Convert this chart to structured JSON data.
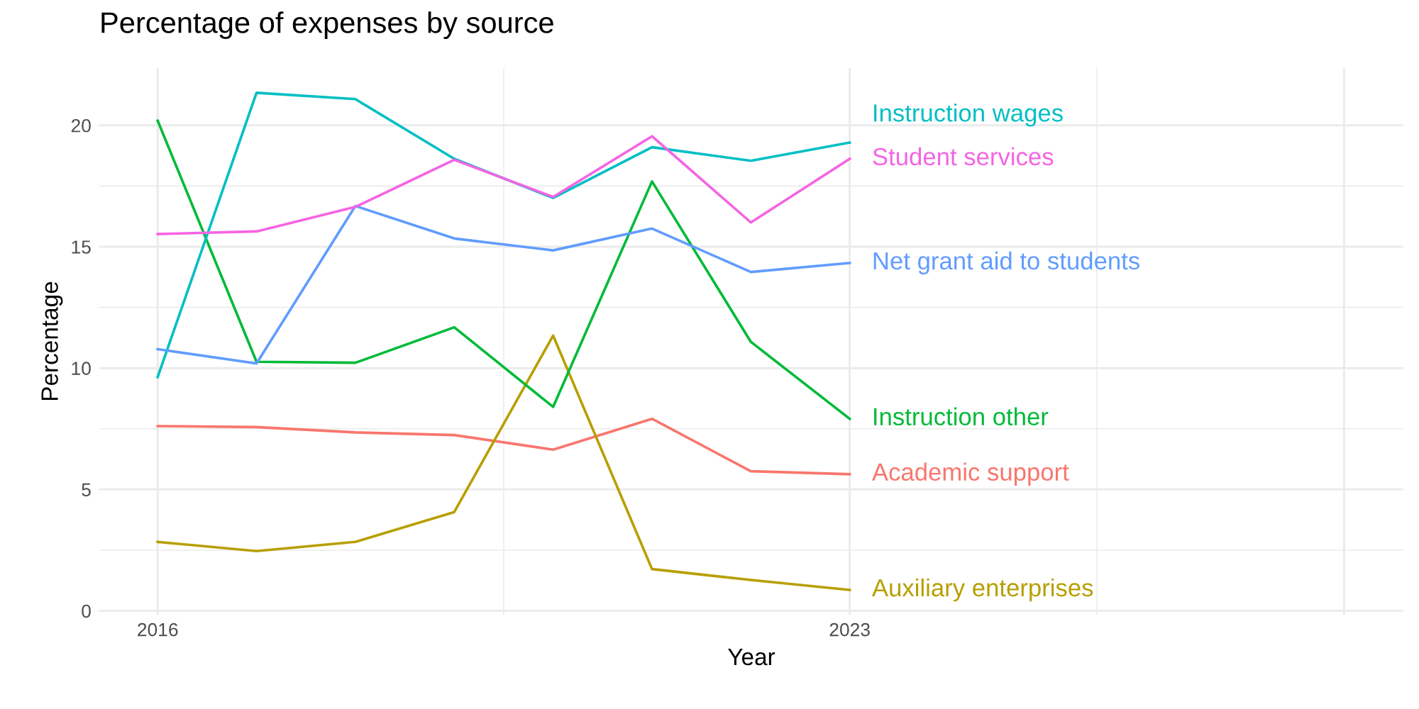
{
  "chart_data": {
    "type": "line",
    "title": "Percentage of expenses by source",
    "xlabel": "Year",
    "ylabel": "Percentage",
    "x": [
      2016,
      2017,
      2018,
      2019,
      2020,
      2021,
      2022,
      2023
    ],
    "series": [
      {
        "name": "Academic support",
        "color": "#F8766D",
        "values": [
          7.61,
          7.57,
          7.35,
          7.24,
          6.64,
          7.91,
          5.75,
          5.63
        ]
      },
      {
        "name": "Auxiliary enterprises",
        "color": "#B79F00",
        "values": [
          2.84,
          2.46,
          2.84,
          4.07,
          11.34,
          1.72,
          1.27,
          0.86
        ]
      },
      {
        "name": "Instruction other",
        "color": "#00BA38",
        "values": [
          20.19,
          10.26,
          10.22,
          11.68,
          8.4,
          17.69,
          11.08,
          7.91
        ]
      },
      {
        "name": "Instruction wages",
        "color": "#00BFC4",
        "values": [
          9.63,
          21.34,
          21.08,
          18.62,
          17.01,
          19.1,
          18.54,
          19.29
        ]
      },
      {
        "name": "Net grant aid to students",
        "color": "#619CFF",
        "values": [
          10.78,
          10.19,
          16.68,
          15.34,
          14.85,
          15.75,
          13.96,
          14.33
        ]
      },
      {
        "name": "Student services",
        "color": "#F564E3",
        "values": [
          15.52,
          15.63,
          16.64,
          18.58,
          17.05,
          19.55,
          16.0,
          18.62
        ]
      }
    ],
    "xlim": [
      2015.41,
      2028.6
    ],
    "xticks": [
      2016,
      2023,
      {
        "value": 2028,
        "label": null
      }
    ],
    "ylim": [
      -0.16,
      22.36
    ],
    "yticks": [
      0,
      5,
      10,
      15,
      20
    ],
    "grid": true,
    "legend": false,
    "marker": "none",
    "line_style": "solid"
  }
}
